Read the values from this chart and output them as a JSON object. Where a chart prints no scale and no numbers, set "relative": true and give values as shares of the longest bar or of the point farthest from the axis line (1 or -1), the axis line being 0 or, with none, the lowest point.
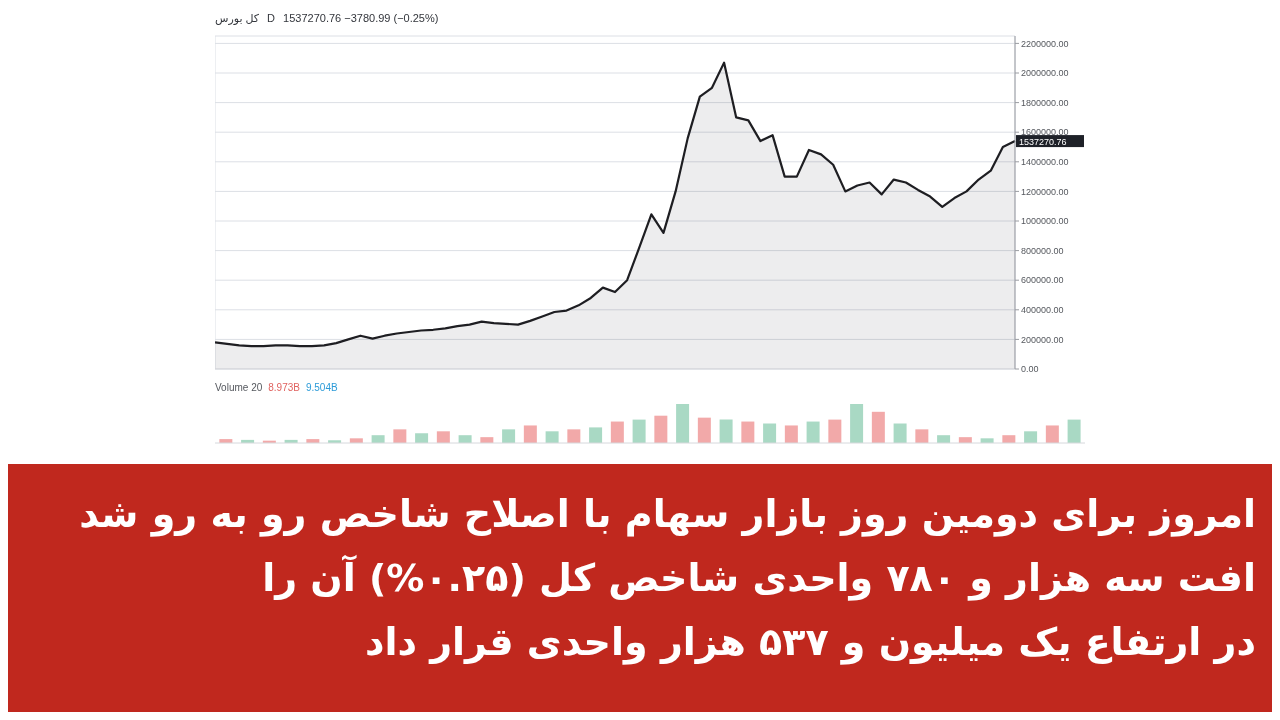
{
  "chart_data": [
    {
      "type": "area",
      "title": "کل بورس",
      "subtitle": "D",
      "color": "#1e1e22",
      "grid": true,
      "tick_labels": "y",
      "categories": [
        null,
        null,
        null,
        null,
        null,
        null,
        null,
        null,
        null,
        null,
        null,
        null,
        null,
        null,
        null,
        null,
        null,
        null,
        null,
        null,
        null,
        null,
        null,
        null,
        null,
        null,
        null,
        null,
        null,
        null,
        null,
        null,
        null,
        null,
        null,
        null,
        null,
        null,
        null,
        null,
        null,
        null,
        null,
        null,
        null,
        null,
        null,
        null,
        null,
        null,
        null,
        null,
        null,
        null,
        null,
        null,
        null,
        null,
        null,
        null,
        null,
        null,
        null,
        null,
        null,
        null,
        null
      ],
      "values": [
        180000,
        170000,
        160000,
        155000,
        155000,
        160000,
        160000,
        155000,
        155000,
        160000,
        175000,
        200000,
        225000,
        205000,
        225000,
        240000,
        250000,
        260000,
        265000,
        275000,
        290000,
        300000,
        320000,
        310000,
        305000,
        300000,
        325000,
        355000,
        385000,
        395000,
        430000,
        480000,
        550000,
        520000,
        600000,
        820000,
        1045000,
        920000,
        1200000,
        1560000,
        1840000,
        1900000,
        2070000,
        1700000,
        1680000,
        1540000,
        1580000,
        1300000,
        1300000,
        1480000,
        1450000,
        1380000,
        1200000,
        1240000,
        1260000,
        1180000,
        1280000,
        1260000,
        1210000,
        1165000,
        1095000,
        1155000,
        1200000,
        1280000,
        1340000,
        1500000,
        1540000
      ],
      "ylim": [
        0,
        2250000
      ],
      "yticks": [
        {
          "value": 0,
          "label": "0.00"
        },
        {
          "value": 200000,
          "label": "200000.00"
        },
        {
          "value": 400000,
          "label": "400000.00"
        },
        {
          "value": 600000,
          "label": "600000.00"
        },
        {
          "value": 800000,
          "label": "800000.00"
        },
        {
          "value": 1000000,
          "label": "1000000.00"
        },
        {
          "value": 1200000,
          "label": "1200000.00"
        },
        {
          "value": 1400000,
          "label": "1400000.00"
        },
        {
          "value": 1600000,
          "label": "1600000.00"
        },
        {
          "value": 1800000,
          "label": "1800000.00"
        },
        {
          "value": 2000000,
          "label": "2000000.00"
        },
        {
          "value": 2200000,
          "label": "2200000.00"
        }
      ],
      "annotations": [
        "1537270.76 −3780.99 (−0.25%)",
        "1537270.76",
        "امروز برای دومین روز بازار سهام با اصلاح شاخص رو به رو شد",
        "افت سه هزار و ۷۸۰ واحدی شاخص کل (۰.۲۵%) آن را",
        "در ارتفاع یک میلیون و ۵۳۷ هزار واحدی قرار داد"
      ]
    },
    {
      "type": "bar",
      "title": "Volume 20",
      "relative": true,
      "tick_labels": false,
      "categories": [
        null,
        null,
        null,
        null,
        null,
        null,
        null,
        null,
        null,
        null,
        null,
        null,
        null,
        null,
        null,
        null,
        null,
        null,
        null,
        null,
        null,
        null,
        null,
        null,
        null,
        null,
        null,
        null,
        null,
        null,
        null,
        null,
        null,
        null,
        null,
        null,
        null,
        null,
        null,
        null
      ],
      "values": [
        0.1,
        0.08,
        0.06,
        0.08,
        0.1,
        0.07,
        0.12,
        0.2,
        0.35,
        0.25,
        0.3,
        0.2,
        0.15,
        0.35,
        0.45,
        0.3,
        0.35,
        0.4,
        0.55,
        0.6,
        0.7,
        1,
        0.65,
        0.6,
        0.55,
        0.5,
        0.45,
        0.55,
        0.6,
        1,
        0.8,
        0.5,
        0.35,
        0.2,
        0.15,
        0.12,
        0.2,
        0.3,
        0.45,
        0.6
      ],
      "colors": [
        "#f2a9a9",
        "#a9d9c4",
        "#f2a9a9",
        "#a9d9c4",
        "#f2a9a9",
        "#a9d9c4",
        "#f2a9a9",
        "#a9d9c4",
        "#f2a9a9",
        "#a9d9c4",
        "#f2a9a9",
        "#a9d9c4",
        "#f2a9a9",
        "#a9d9c4",
        "#f2a9a9",
        "#a9d9c4",
        "#f2a9a9",
        "#a9d9c4",
        "#f2a9a9",
        "#a9d9c4",
        "#f2a9a9",
        "#a9d9c4",
        "#f2a9a9",
        "#a9d9c4",
        "#f2a9a9",
        "#a9d9c4",
        "#f2a9a9",
        "#a9d9c4",
        "#f2a9a9",
        "#a9d9c4",
        "#f2a9a9",
        "#a9d9c4",
        "#f2a9a9",
        "#a9d9c4",
        "#f2a9a9",
        "#a9d9c4",
        "#f2a9a9",
        "#a9d9c4",
        "#f2a9a9",
        "#a9d9c4"
      ],
      "annotations": [
        "8.973B",
        "9.504B"
      ]
    }
  ]
}
